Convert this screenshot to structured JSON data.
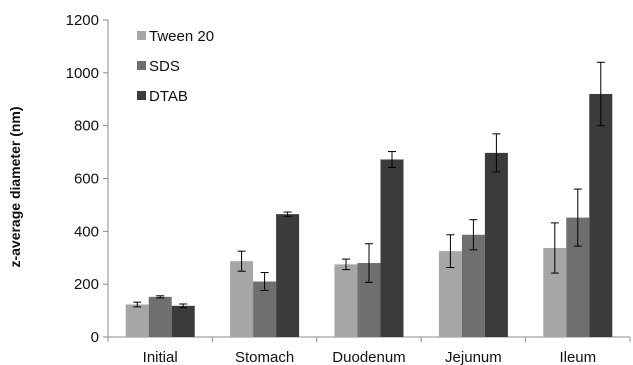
{
  "chart_data": {
    "type": "bar",
    "title": "",
    "xlabel": "",
    "ylabel": "z-average diameter (nm)",
    "ylim": [
      0,
      1200
    ],
    "yticks": [
      0,
      200,
      400,
      600,
      800,
      1000,
      1200
    ],
    "grid": false,
    "legend_position": "top-left",
    "categories": [
      "Initial",
      "Stomach",
      "Duodenum",
      "Jejunum",
      "Ileum"
    ],
    "series": [
      {
        "name": "Tween 20",
        "color": "#a6a6a6",
        "values": [
          123,
          287,
          275,
          325,
          337
        ],
        "errors": [
          9,
          38,
          20,
          62,
          95
        ]
      },
      {
        "name": "SDS",
        "color": "#6f6f6f",
        "values": [
          152,
          210,
          280,
          387,
          452
        ],
        "errors": [
          4,
          34,
          73,
          57,
          108
        ]
      },
      {
        "name": "DTAB",
        "color": "#3b3b3b",
        "values": [
          118,
          465,
          672,
          697,
          920
        ],
        "errors": [
          7,
          8,
          30,
          72,
          120
        ]
      }
    ]
  }
}
